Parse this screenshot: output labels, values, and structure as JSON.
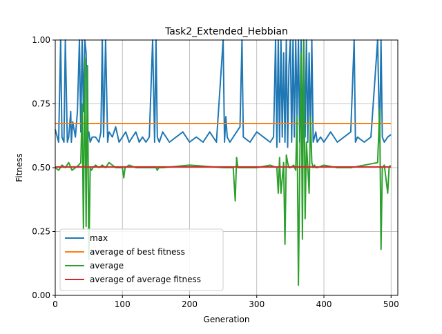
{
  "chart_data": {
    "type": "line",
    "title": "Task2_Extended_Hebbian",
    "xlabel": "Generation",
    "ylabel": "Fitness",
    "xlim": [
      0,
      510
    ],
    "ylim": [
      0.0,
      1.0
    ],
    "xticks": [
      0,
      100,
      200,
      300,
      400,
      500
    ],
    "yticks": [
      0.0,
      0.25,
      0.5,
      0.75,
      1.0
    ],
    "xtick_labels": [
      "0",
      "100",
      "200",
      "300",
      "400",
      "500"
    ],
    "ytick_labels": [
      "0.00",
      "0.25",
      "0.50",
      "0.75",
      "1.00"
    ],
    "grid": true,
    "legend_position": "lower-left",
    "series": [
      {
        "name": "max",
        "color": "#1f77b4",
        "x": [
          0,
          5,
          8,
          10,
          13,
          15,
          18,
          20,
          23,
          24,
          26,
          30,
          33,
          36,
          38,
          40,
          42,
          44,
          46,
          48,
          50,
          52,
          55,
          60,
          65,
          68,
          70,
          72,
          75,
          78,
          80,
          85,
          90,
          95,
          100,
          105,
          110,
          115,
          120,
          125,
          130,
          135,
          140,
          145,
          148,
          150,
          152,
          155,
          160,
          170,
          180,
          190,
          200,
          210,
          220,
          230,
          240,
          250,
          252,
          254,
          256,
          260,
          270,
          275,
          278,
          280,
          290,
          300,
          310,
          320,
          325,
          328,
          330,
          332,
          334,
          336,
          338,
          340,
          342,
          344,
          346,
          348,
          350,
          352,
          354,
          356,
          358,
          360,
          362,
          364,
          366,
          368,
          370,
          372,
          374,
          376,
          378,
          380,
          382,
          384,
          386,
          388,
          390,
          395,
          400,
          410,
          420,
          430,
          440,
          445,
          447,
          450,
          460,
          470,
          480,
          483,
          485,
          487,
          490,
          495,
          500
        ],
        "y": [
          0.65,
          0.6,
          1.0,
          0.62,
          0.6,
          1.0,
          0.6,
          0.62,
          0.72,
          0.6,
          0.68,
          0.62,
          0.72,
          1.0,
          0.64,
          1.0,
          0.72,
          1.0,
          0.95,
          0.62,
          0.64,
          0.6,
          0.62,
          0.62,
          0.6,
          0.64,
          1.0,
          0.62,
          1.0,
          0.6,
          0.64,
          0.62,
          0.66,
          0.6,
          0.62,
          0.64,
          0.6,
          0.62,
          0.64,
          0.6,
          0.62,
          0.6,
          0.62,
          1.0,
          0.6,
          1.0,
          0.62,
          0.6,
          0.64,
          0.6,
          0.62,
          0.64,
          0.6,
          0.62,
          0.6,
          0.64,
          0.6,
          1.0,
          0.6,
          0.7,
          0.62,
          0.6,
          0.64,
          0.66,
          1.0,
          0.62,
          0.6,
          0.64,
          0.62,
          0.6,
          0.62,
          1.0,
          0.58,
          1.0,
          0.6,
          1.0,
          0.62,
          0.95,
          0.6,
          1.0,
          0.58,
          0.9,
          1.0,
          0.6,
          1.0,
          0.62,
          1.0,
          0.7,
          1.0,
          0.6,
          1.0,
          0.58,
          1.0,
          0.62,
          1.0,
          0.6,
          0.95,
          0.62,
          1.0,
          0.6,
          0.62,
          0.64,
          0.6,
          0.62,
          0.6,
          0.64,
          0.6,
          0.62,
          0.64,
          1.0,
          0.6,
          0.62,
          0.6,
          0.62,
          1.0,
          0.6,
          1.0,
          0.62,
          0.6,
          0.62,
          0.63
        ]
      },
      {
        "name": "average of best fitness",
        "color": "#ff7f0e",
        "x": [
          0,
          500
        ],
        "y": [
          0.673,
          0.673
        ]
      },
      {
        "name": "average",
        "color": "#2ca02c",
        "x": [
          0,
          5,
          10,
          15,
          20,
          25,
          30,
          35,
          38,
          40,
          42,
          44,
          46,
          48,
          50,
          52,
          54,
          56,
          60,
          65,
          70,
          75,
          80,
          90,
          100,
          102,
          104,
          110,
          120,
          150,
          152,
          154,
          160,
          200,
          250,
          265,
          268,
          270,
          272,
          275,
          300,
          320,
          330,
          332,
          334,
          336,
          340,
          342,
          344,
          346,
          348,
          350,
          355,
          358,
          360,
          362,
          364,
          366,
          368,
          370,
          372,
          374,
          376,
          378,
          380,
          382,
          384,
          386,
          388,
          390,
          400,
          420,
          440,
          460,
          480,
          483,
          485,
          487,
          490,
          495,
          497,
          499
        ],
        "y": [
          0.5,
          0.49,
          0.51,
          0.5,
          0.52,
          0.49,
          0.5,
          0.51,
          0.52,
          0.75,
          0.26,
          0.93,
          0.27,
          0.9,
          0.14,
          0.5,
          0.49,
          0.5,
          0.51,
          0.5,
          0.51,
          0.5,
          0.52,
          0.5,
          0.5,
          0.46,
          0.5,
          0.51,
          0.5,
          0.5,
          0.49,
          0.5,
          0.5,
          0.51,
          0.5,
          0.5,
          0.37,
          0.54,
          0.5,
          0.5,
          0.5,
          0.51,
          0.5,
          0.4,
          0.54,
          0.4,
          0.52,
          0.2,
          0.55,
          0.52,
          0.5,
          0.5,
          0.51,
          0.49,
          0.7,
          0.04,
          0.5,
          0.95,
          0.22,
          1.0,
          0.3,
          0.6,
          0.5,
          0.4,
          0.7,
          0.52,
          0.5,
          0.51,
          0.5,
          0.5,
          0.51,
          0.5,
          0.5,
          0.51,
          0.52,
          0.73,
          0.18,
          0.5,
          0.51,
          0.4,
          0.5,
          0.51
        ]
      },
      {
        "name": "average of average fitness",
        "color": "#d62728",
        "x": [
          0,
          500
        ],
        "y": [
          0.503,
          0.503
        ]
      }
    ]
  }
}
